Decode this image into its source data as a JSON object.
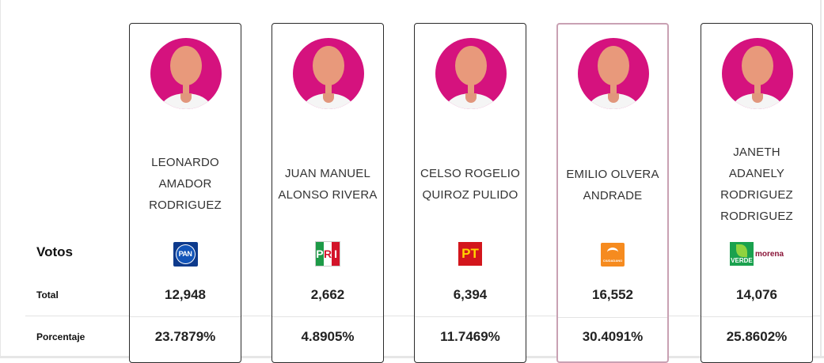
{
  "labels": {
    "votos": "Votos",
    "total": "Total",
    "porcentaje": "Porcentaje"
  },
  "colors": {
    "avatar_background": "#d5127e",
    "winner_border": "#c9a1b3",
    "card_border": "#2b2b2b"
  },
  "candidates": [
    {
      "name_lines": [
        "LEONARDO",
        "AMADOR",
        "RODRIGUEZ"
      ],
      "party_logo": "pan-logo",
      "party_text": "PAN",
      "total": "12,948",
      "percentage": "23.7879%"
    },
    {
      "name_lines": [
        "JUAN MANUEL",
        "ALONSO RIVERA"
      ],
      "party_logo": "pri-logo",
      "party_text": [
        "P",
        "R",
        "I"
      ],
      "total": "2,662",
      "percentage": "4.8905%"
    },
    {
      "name_lines": [
        "CELSO ROGELIO",
        "QUIROZ PULIDO"
      ],
      "party_logo": "pt-logo",
      "party_text": "PT",
      "total": "6,394",
      "percentage": "11.7469%"
    },
    {
      "name_lines": [
        "EMILIO OLVERA",
        "ANDRADE"
      ],
      "party_logo": "movimiento-ciudadano-logo",
      "party_text": "CIUDADANO",
      "total": "16,552",
      "percentage": "30.4091%",
      "highlighted": true
    },
    {
      "name_lines": [
        "JANETH",
        "ADANELY",
        "RODRIGUEZ",
        "RODRIGUEZ"
      ],
      "party_logo": "verde-morena-coalition-logo",
      "party_text": [
        "VERDE",
        "morena"
      ],
      "total": "14,076",
      "percentage": "25.8602%"
    }
  ]
}
